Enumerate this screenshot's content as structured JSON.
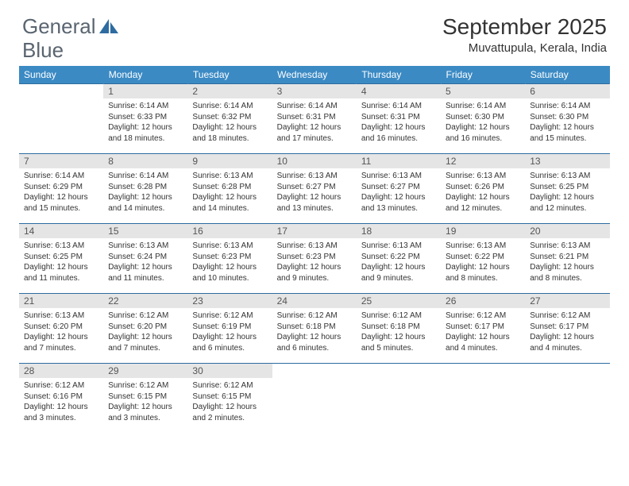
{
  "logo": {
    "text1": "General",
    "text2": "Blue"
  },
  "title": "September 2025",
  "location": "Muvattupula, Kerala, India",
  "colors": {
    "header_bg": "#3b8ac4",
    "header_text": "#ffffff",
    "daynum_bg": "#e5e5e5",
    "row_border": "#2e6ca0",
    "logo_text": "#5a6570",
    "logo_accent": "#2e6ca0"
  },
  "weekdays": [
    "Sunday",
    "Monday",
    "Tuesday",
    "Wednesday",
    "Thursday",
    "Friday",
    "Saturday"
  ],
  "grid": [
    [
      null,
      {
        "n": "1",
        "sr": "6:14 AM",
        "ss": "6:33 PM",
        "dl": "12 hours and 18 minutes."
      },
      {
        "n": "2",
        "sr": "6:14 AM",
        "ss": "6:32 PM",
        "dl": "12 hours and 18 minutes."
      },
      {
        "n": "3",
        "sr": "6:14 AM",
        "ss": "6:31 PM",
        "dl": "12 hours and 17 minutes."
      },
      {
        "n": "4",
        "sr": "6:14 AM",
        "ss": "6:31 PM",
        "dl": "12 hours and 16 minutes."
      },
      {
        "n": "5",
        "sr": "6:14 AM",
        "ss": "6:30 PM",
        "dl": "12 hours and 16 minutes."
      },
      {
        "n": "6",
        "sr": "6:14 AM",
        "ss": "6:30 PM",
        "dl": "12 hours and 15 minutes."
      }
    ],
    [
      {
        "n": "7",
        "sr": "6:14 AM",
        "ss": "6:29 PM",
        "dl": "12 hours and 15 minutes."
      },
      {
        "n": "8",
        "sr": "6:14 AM",
        "ss": "6:28 PM",
        "dl": "12 hours and 14 minutes."
      },
      {
        "n": "9",
        "sr": "6:13 AM",
        "ss": "6:28 PM",
        "dl": "12 hours and 14 minutes."
      },
      {
        "n": "10",
        "sr": "6:13 AM",
        "ss": "6:27 PM",
        "dl": "12 hours and 13 minutes."
      },
      {
        "n": "11",
        "sr": "6:13 AM",
        "ss": "6:27 PM",
        "dl": "12 hours and 13 minutes."
      },
      {
        "n": "12",
        "sr": "6:13 AM",
        "ss": "6:26 PM",
        "dl": "12 hours and 12 minutes."
      },
      {
        "n": "13",
        "sr": "6:13 AM",
        "ss": "6:25 PM",
        "dl": "12 hours and 12 minutes."
      }
    ],
    [
      {
        "n": "14",
        "sr": "6:13 AM",
        "ss": "6:25 PM",
        "dl": "12 hours and 11 minutes."
      },
      {
        "n": "15",
        "sr": "6:13 AM",
        "ss": "6:24 PM",
        "dl": "12 hours and 11 minutes."
      },
      {
        "n": "16",
        "sr": "6:13 AM",
        "ss": "6:23 PM",
        "dl": "12 hours and 10 minutes."
      },
      {
        "n": "17",
        "sr": "6:13 AM",
        "ss": "6:23 PM",
        "dl": "12 hours and 9 minutes."
      },
      {
        "n": "18",
        "sr": "6:13 AM",
        "ss": "6:22 PM",
        "dl": "12 hours and 9 minutes."
      },
      {
        "n": "19",
        "sr": "6:13 AM",
        "ss": "6:22 PM",
        "dl": "12 hours and 8 minutes."
      },
      {
        "n": "20",
        "sr": "6:13 AM",
        "ss": "6:21 PM",
        "dl": "12 hours and 8 minutes."
      }
    ],
    [
      {
        "n": "21",
        "sr": "6:13 AM",
        "ss": "6:20 PM",
        "dl": "12 hours and 7 minutes."
      },
      {
        "n": "22",
        "sr": "6:12 AM",
        "ss": "6:20 PM",
        "dl": "12 hours and 7 minutes."
      },
      {
        "n": "23",
        "sr": "6:12 AM",
        "ss": "6:19 PM",
        "dl": "12 hours and 6 minutes."
      },
      {
        "n": "24",
        "sr": "6:12 AM",
        "ss": "6:18 PM",
        "dl": "12 hours and 6 minutes."
      },
      {
        "n": "25",
        "sr": "6:12 AM",
        "ss": "6:18 PM",
        "dl": "12 hours and 5 minutes."
      },
      {
        "n": "26",
        "sr": "6:12 AM",
        "ss": "6:17 PM",
        "dl": "12 hours and 4 minutes."
      },
      {
        "n": "27",
        "sr": "6:12 AM",
        "ss": "6:17 PM",
        "dl": "12 hours and 4 minutes."
      }
    ],
    [
      {
        "n": "28",
        "sr": "6:12 AM",
        "ss": "6:16 PM",
        "dl": "12 hours and 3 minutes."
      },
      {
        "n": "29",
        "sr": "6:12 AM",
        "ss": "6:15 PM",
        "dl": "12 hours and 3 minutes."
      },
      {
        "n": "30",
        "sr": "6:12 AM",
        "ss": "6:15 PM",
        "dl": "12 hours and 2 minutes."
      },
      null,
      null,
      null,
      null
    ]
  ],
  "labels": {
    "sunrise": "Sunrise:",
    "sunset": "Sunset:",
    "daylight": "Daylight:"
  }
}
